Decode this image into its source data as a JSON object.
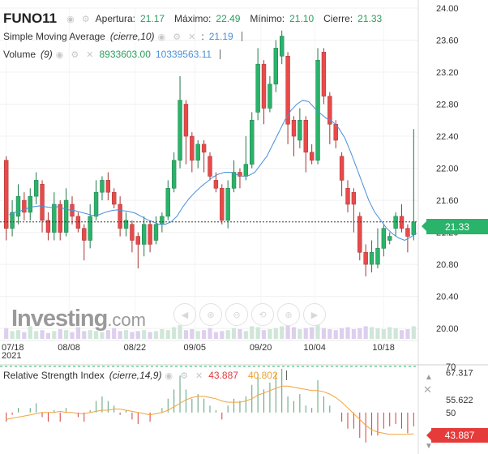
{
  "header": {
    "symbol": "FUNO11",
    "open_label": "Apertura:",
    "open_value": "21.17",
    "high_label": "Máximo:",
    "high_value": "22.49",
    "low_label": "Mínimo:",
    "low_value": "21.10",
    "close_label": "Cierre:",
    "close_value": "21.33"
  },
  "sma_legend": {
    "name": "Simple Moving Average",
    "params": "(cierre,10)",
    "value": "21.19"
  },
  "volume_legend": {
    "name": "Volume",
    "params": "(9)",
    "value1": "8933603.00",
    "value2": "10339563.11"
  },
  "rsi_legend": {
    "name": "Relative Strength Index",
    "params": "(cierre,14,9)",
    "value1": "43.887",
    "value2": "40.802"
  },
  "watermark": {
    "brand": "Investing",
    "suffix": ".com"
  },
  "price_tag": "21.33",
  "rsi_tag": "43.887",
  "colors": {
    "up": "#2ab36a",
    "down": "#e84a4a",
    "sma": "#4a90d9",
    "rsi_signal": "#f2a33a",
    "volume": "#b9a7dc"
  },
  "icons": [
    "eye-icon",
    "settings-gear-icon",
    "close-icon",
    "zoom-in-icon",
    "zoom-out-icon",
    "scroll-left-icon",
    "scroll-right-icon",
    "reset-icon"
  ],
  "chart_data": [
    {
      "type": "candlestick",
      "title": "FUNO11",
      "x_ticks": [
        "07/18\n2021",
        "08/08",
        "08/22",
        "09/05",
        "09/20",
        "10/04",
        "10/18"
      ],
      "y_ticks": [
        "24.00",
        "23.60",
        "23.20",
        "22.80",
        "22.40",
        "22.00",
        "21.60",
        "21.20",
        "20.80",
        "20.40",
        "20.00"
      ],
      "ylim": [
        19.9,
        24.0
      ],
      "current_price": 21.33,
      "candles": [
        {
          "o": 22.1,
          "c": 21.25,
          "h": 22.15,
          "l": 21.1
        },
        {
          "o": 21.25,
          "c": 21.45,
          "h": 21.6,
          "l": 21.15
        },
        {
          "o": 21.4,
          "c": 21.65,
          "h": 21.8,
          "l": 21.3
        },
        {
          "o": 21.6,
          "c": 21.45,
          "h": 21.7,
          "l": 21.35
        },
        {
          "o": 21.45,
          "c": 21.65,
          "h": 21.75,
          "l": 21.35
        },
        {
          "o": 21.65,
          "c": 21.85,
          "h": 21.95,
          "l": 21.55
        },
        {
          "o": 21.8,
          "c": 21.35,
          "h": 21.85,
          "l": 21.2
        },
        {
          "o": 21.35,
          "c": 21.2,
          "h": 21.45,
          "l": 21.1
        },
        {
          "o": 21.2,
          "c": 21.55,
          "h": 21.7,
          "l": 21.1
        },
        {
          "o": 21.55,
          "c": 21.2,
          "h": 21.6,
          "l": 21.1
        },
        {
          "o": 21.2,
          "c": 21.6,
          "h": 21.75,
          "l": 21.15
        },
        {
          "o": 21.55,
          "c": 21.4,
          "h": 21.65,
          "l": 21.3
        },
        {
          "o": 21.4,
          "c": 21.25,
          "h": 21.45,
          "l": 21.2
        },
        {
          "o": 21.25,
          "c": 21.1,
          "h": 21.3,
          "l": 20.85
        },
        {
          "o": 21.1,
          "c": 21.4,
          "h": 21.55,
          "l": 21.0
        },
        {
          "o": 21.4,
          "c": 21.7,
          "h": 21.85,
          "l": 21.35
        },
        {
          "o": 21.7,
          "c": 21.85,
          "h": 21.9,
          "l": 21.6
        },
        {
          "o": 21.85,
          "c": 21.7,
          "h": 21.95,
          "l": 21.6
        },
        {
          "o": 21.7,
          "c": 21.55,
          "h": 21.75,
          "l": 21.5
        },
        {
          "o": 21.55,
          "c": 21.25,
          "h": 21.65,
          "l": 21.15
        },
        {
          "o": 21.25,
          "c": 21.35,
          "h": 21.45,
          "l": 21.15
        },
        {
          "o": 21.3,
          "c": 21.1,
          "h": 21.35,
          "l": 20.95
        },
        {
          "o": 21.15,
          "c": 21.05,
          "h": 21.2,
          "l": 20.75
        },
        {
          "o": 21.05,
          "c": 21.3,
          "h": 21.4,
          "l": 20.9
        },
        {
          "o": 21.3,
          "c": 21.05,
          "h": 21.35,
          "l": 20.95
        },
        {
          "o": 21.1,
          "c": 21.3,
          "h": 21.4,
          "l": 21.05
        },
        {
          "o": 21.3,
          "c": 21.4,
          "h": 21.45,
          "l": 21.2
        },
        {
          "o": 21.4,
          "c": 21.75,
          "h": 21.85,
          "l": 21.35
        },
        {
          "o": 21.75,
          "c": 22.1,
          "h": 22.2,
          "l": 21.7
        },
        {
          "o": 22.1,
          "c": 22.85,
          "h": 23.15,
          "l": 22.0
        },
        {
          "o": 22.8,
          "c": 22.4,
          "h": 22.85,
          "l": 22.05
        },
        {
          "o": 22.4,
          "c": 22.1,
          "h": 22.45,
          "l": 21.95
        },
        {
          "o": 22.1,
          "c": 22.3,
          "h": 22.35,
          "l": 22.0
        },
        {
          "o": 22.3,
          "c": 22.2,
          "h": 22.35,
          "l": 21.95
        },
        {
          "o": 22.15,
          "c": 21.9,
          "h": 22.2,
          "l": 21.85
        },
        {
          "o": 21.85,
          "c": 21.75,
          "h": 21.95,
          "l": 21.7
        },
        {
          "o": 21.75,
          "c": 21.35,
          "h": 21.8,
          "l": 21.3
        },
        {
          "o": 21.35,
          "c": 21.75,
          "h": 21.85,
          "l": 21.25
        },
        {
          "o": 21.75,
          "c": 21.95,
          "h": 22.1,
          "l": 21.7
        },
        {
          "o": 21.95,
          "c": 21.9,
          "h": 22.0,
          "l": 21.75
        },
        {
          "o": 21.9,
          "c": 22.05,
          "h": 22.4,
          "l": 21.85
        },
        {
          "o": 22.05,
          "c": 22.6,
          "h": 22.7,
          "l": 22.0
        },
        {
          "o": 22.7,
          "c": 23.3,
          "h": 23.5,
          "l": 22.6
        },
        {
          "o": 23.3,
          "c": 22.75,
          "h": 23.35,
          "l": 22.55
        },
        {
          "o": 22.75,
          "c": 23.05,
          "h": 23.15,
          "l": 22.7
        },
        {
          "o": 23.05,
          "c": 23.5,
          "h": 23.6,
          "l": 22.95
        },
        {
          "o": 23.4,
          "c": 23.65,
          "h": 23.72,
          "l": 23.3
        },
        {
          "o": 23.4,
          "c": 22.55,
          "h": 23.45,
          "l": 22.3
        },
        {
          "o": 22.6,
          "c": 22.4,
          "h": 22.65,
          "l": 22.15
        },
        {
          "o": 22.35,
          "c": 22.6,
          "h": 22.75,
          "l": 22.25
        },
        {
          "o": 22.6,
          "c": 22.2,
          "h": 22.65,
          "l": 21.95
        },
        {
          "o": 22.2,
          "c": 22.1,
          "h": 22.3,
          "l": 22.05
        },
        {
          "o": 22.1,
          "c": 23.35,
          "h": 23.5,
          "l": 22.05
        },
        {
          "o": 23.45,
          "c": 22.9,
          "h": 23.5,
          "l": 22.8
        },
        {
          "o": 22.9,
          "c": 22.55,
          "h": 22.95,
          "l": 22.3
        },
        {
          "o": 22.55,
          "c": 22.35,
          "h": 22.6,
          "l": 22.25
        },
        {
          "o": 22.15,
          "c": 21.85,
          "h": 22.2,
          "l": 21.65
        },
        {
          "o": 21.75,
          "c": 21.55,
          "h": 21.85,
          "l": 21.45
        },
        {
          "o": 21.7,
          "c": 21.55,
          "h": 21.75,
          "l": 21.2
        },
        {
          "o": 21.4,
          "c": 20.95,
          "h": 21.45,
          "l": 20.85
        },
        {
          "o": 20.95,
          "c": 20.8,
          "h": 21.05,
          "l": 20.65
        },
        {
          "o": 20.8,
          "c": 20.95,
          "h": 21.1,
          "l": 20.7
        },
        {
          "o": 20.8,
          "c": 21.0,
          "h": 21.25,
          "l": 20.75
        },
        {
          "o": 21.0,
          "c": 21.25,
          "h": 21.3,
          "l": 20.9
        },
        {
          "o": 21.1,
          "c": 21.15,
          "h": 21.2,
          "l": 21.05
        },
        {
          "o": 21.25,
          "c": 21.4,
          "h": 21.45,
          "l": 21.15
        },
        {
          "o": 21.4,
          "c": 21.25,
          "h": 21.55,
          "l": 21.2
        },
        {
          "o": 21.25,
          "c": 21.15,
          "h": 21.3,
          "l": 20.95
        },
        {
          "o": 21.17,
          "c": 21.33,
          "h": 22.49,
          "l": 21.1
        }
      ],
      "sma_10": [
        21.42,
        21.45,
        21.47,
        21.5,
        21.52,
        21.53,
        21.52,
        21.51,
        21.52,
        21.5,
        21.48,
        21.47,
        21.45,
        21.43,
        21.41,
        21.42,
        21.45,
        21.47,
        21.48,
        21.47,
        21.46,
        21.44,
        21.4,
        21.36,
        21.33,
        21.3,
        21.3,
        21.33,
        21.4,
        21.52,
        21.62,
        21.7,
        21.77,
        21.83,
        21.89,
        21.93,
        21.95,
        21.95,
        21.92,
        21.9,
        21.91,
        21.95,
        22.05,
        22.15,
        22.3,
        22.45,
        22.6,
        22.72,
        22.8,
        22.85,
        22.83,
        22.75,
        22.68,
        22.62,
        22.58,
        22.5,
        22.38,
        22.2,
        22.0,
        21.8,
        21.6,
        21.45,
        21.35,
        21.25,
        21.18,
        21.13,
        21.1,
        21.14,
        21.19
      ],
      "volume": [
        1.1,
        0.8,
        0.9,
        0.7,
        1.3,
        0.8,
        0.9,
        0.6,
        0.8,
        1.0,
        0.9,
        0.7,
        1.2,
        0.8,
        0.9,
        0.8,
        0.7,
        0.9,
        1.1,
        0.8,
        0.9,
        0.7,
        0.8,
        0.9,
        0.7,
        0.8,
        1.0,
        0.9,
        1.2,
        1.4,
        0.9,
        1.0,
        0.8,
        0.9,
        1.1,
        0.7,
        0.8,
        0.9,
        1.1,
        1.0,
        0.8,
        1.3,
        1.2,
        0.9,
        1.0,
        1.1,
        1.3,
        1.4,
        1.2,
        1.0,
        1.1,
        1.2,
        1.5,
        1.1,
        1.0,
        0.9,
        1.1,
        1.2,
        1.0,
        1.1,
        1.3,
        1.2,
        1.1,
        1.0,
        1.2,
        1.1,
        0.9,
        1.0,
        1.3
      ]
    },
    {
      "type": "bar",
      "title": "Relative Strength Index",
      "y_ticks": [
        "70",
        "67.317",
        "55.622",
        "50",
        "43.887"
      ],
      "ylim": [
        32,
        70
      ],
      "baseline": 50,
      "rsi": [
        46,
        49,
        52,
        50,
        52,
        54,
        48,
        46,
        51,
        46,
        52,
        50,
        48,
        46,
        51,
        55,
        57,
        55,
        53,
        49,
        51,
        47,
        45,
        50,
        46,
        50,
        52,
        56,
        60,
        66,
        60,
        56,
        58,
        56,
        53,
        51,
        47,
        53,
        56,
        55,
        57,
        62,
        67,
        60,
        63,
        67,
        69,
        57,
        55,
        58,
        53,
        52,
        64,
        57,
        53,
        50,
        46,
        43,
        43,
        39,
        37,
        40,
        40,
        43,
        44,
        45,
        43,
        41,
        44
      ],
      "signal": [
        47,
        47.5,
        48,
        48.5,
        49,
        49.5,
        50,
        50,
        50,
        50.5,
        50,
        50,
        49.5,
        49.5,
        50,
        50.5,
        51,
        51,
        51.5,
        51.5,
        51,
        50.5,
        50,
        49.5,
        49,
        49.5,
        50,
        51,
        52.5,
        54,
        55.5,
        56.5,
        57,
        57,
        56.5,
        56,
        55,
        54.5,
        54.5,
        54.5,
        55,
        56,
        57.5,
        58.5,
        59.5,
        60.5,
        61.5,
        61.5,
        61,
        60.5,
        60,
        59.5,
        59.5,
        59,
        58,
        56.5,
        54.5,
        52,
        49.5,
        47,
        44.5,
        42.5,
        41.5,
        41,
        40.5,
        40.5,
        40.5,
        40.6,
        40.8
      ]
    }
  ]
}
